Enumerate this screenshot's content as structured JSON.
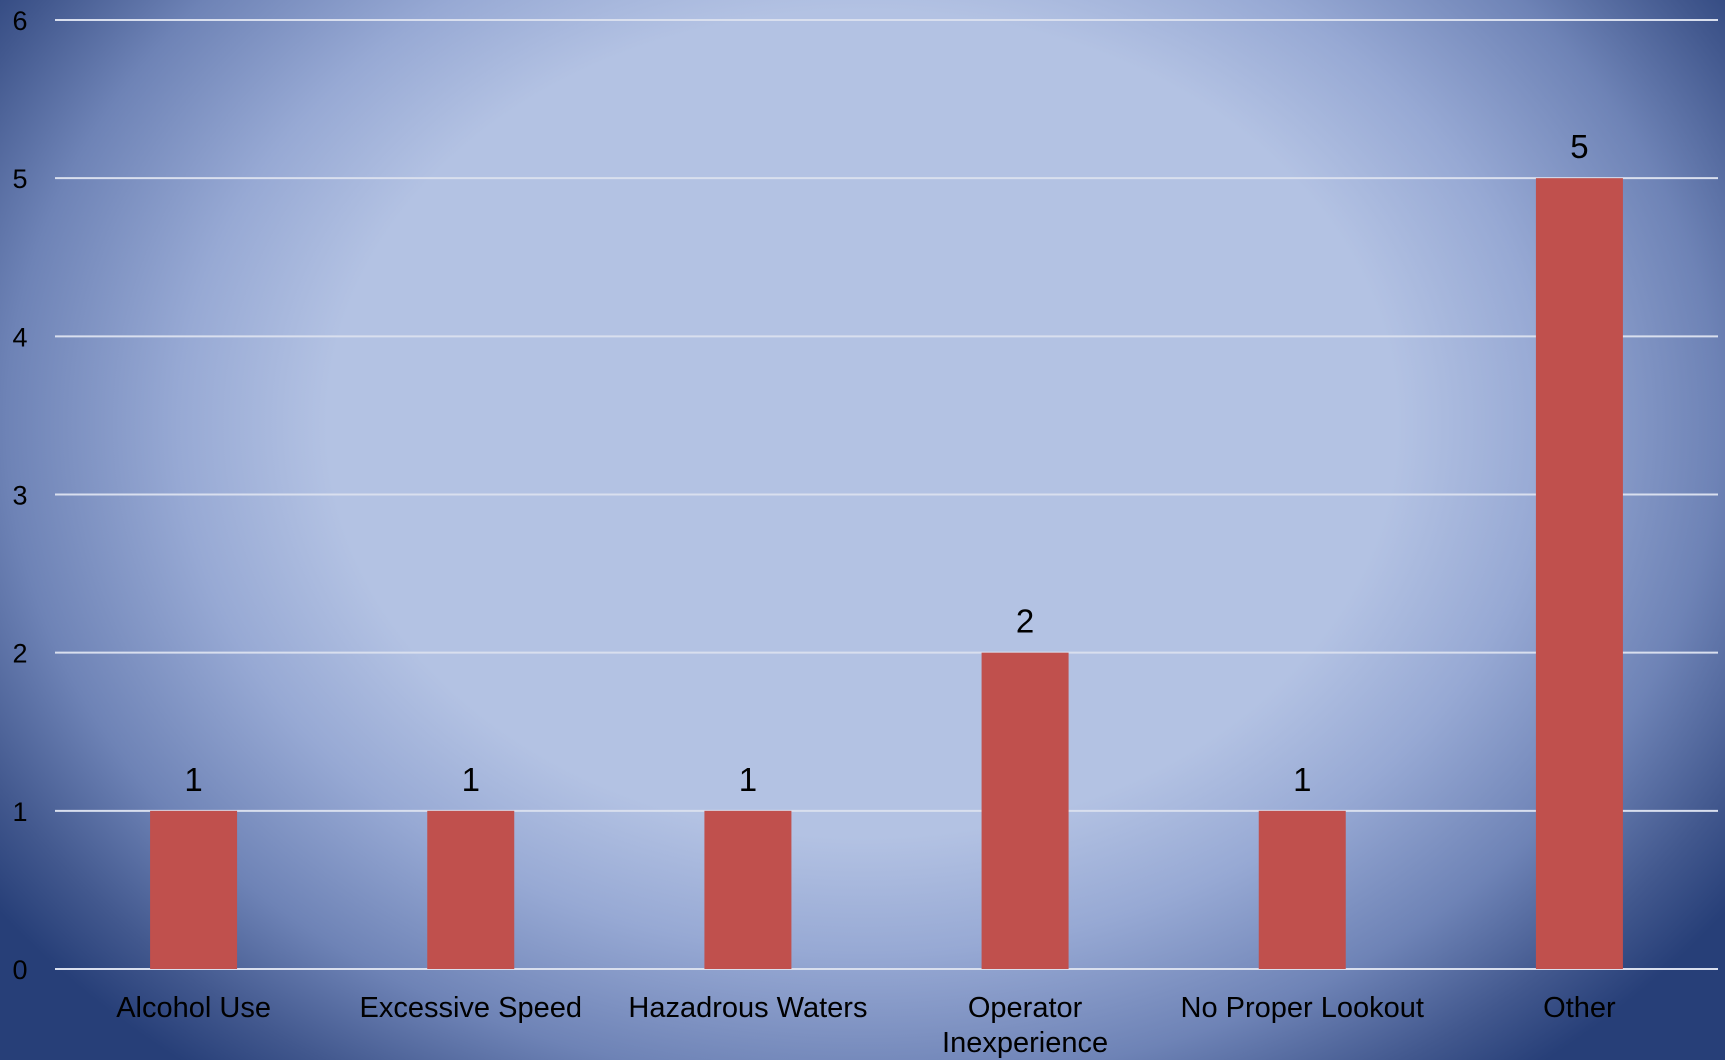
{
  "chart_data": {
    "type": "bar",
    "categories": [
      "Alcohol Use",
      "Excessive Speed",
      "Hazadrous Waters",
      "Operator Inexperience",
      "No Proper Lookout",
      "Other"
    ],
    "category_lines": [
      [
        "Alcohol Use"
      ],
      [
        "Excessive Speed"
      ],
      [
        "Hazadrous Waters"
      ],
      [
        "Operator",
        "Inexperience"
      ],
      [
        "No Proper Lookout"
      ],
      [
        "Other"
      ]
    ],
    "values": [
      1,
      1,
      1,
      2,
      1,
      5
    ],
    "data_labels": [
      "1",
      "1",
      "1",
      "2",
      "1",
      "5"
    ],
    "y_ticks": [
      "0",
      "1",
      "2",
      "3",
      "4",
      "5",
      "6"
    ],
    "ylim": [
      0,
      6
    ],
    "grid": true,
    "legend": "none",
    "bar_color": "#c0504d",
    "grid_color": "#d9dfee",
    "text_color": "#000000"
  }
}
